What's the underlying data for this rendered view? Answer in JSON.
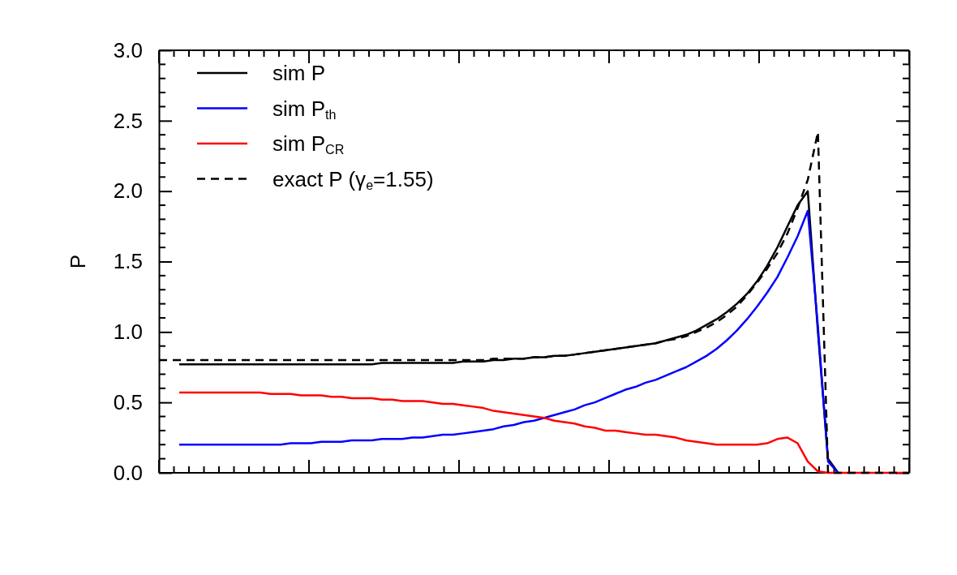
{
  "chart_data": {
    "type": "line",
    "ylabel": "P",
    "categories": [
      null,
      null,
      null,
      null,
      null,
      null,
      null,
      null,
      null,
      null,
      null,
      null,
      null,
      null,
      null,
      null,
      null,
      null,
      null,
      null,
      null,
      null,
      null,
      null,
      null,
      null,
      null,
      null,
      null,
      null,
      null,
      null,
      null,
      null,
      null,
      null,
      null,
      null,
      null,
      null,
      null,
      null,
      null,
      null,
      null,
      null,
      null,
      null,
      null,
      null,
      null,
      null,
      null,
      null,
      null,
      null,
      null,
      null,
      null,
      null,
      null,
      null,
      null,
      null,
      null,
      null,
      null,
      null,
      null,
      null,
      null,
      null,
      null,
      null,
      null
    ],
    "ylim": [
      0,
      3
    ],
    "yticks": [
      {
        "value": 0,
        "label": "0.0"
      },
      {
        "value": 0.5,
        "label": "0.5"
      },
      {
        "value": 1,
        "label": "1.0"
      },
      {
        "value": 1.5,
        "label": "1.5"
      },
      {
        "value": 2,
        "label": "2.0"
      },
      {
        "value": 2.5,
        "label": "2.5"
      },
      {
        "value": 3,
        "label": "3.0"
      }
    ],
    "legend": "top left",
    "marker": "none",
    "series": [
      {
        "name": "sim P",
        "color": "#000000",
        "line_style": "solid",
        "values": [
          null,
          null,
          0.77,
          0.77,
          0.77,
          0.77,
          0.77,
          0.77,
          0.77,
          0.77,
          0.77,
          0.77,
          0.77,
          0.77,
          0.77,
          0.77,
          0.77,
          0.77,
          0.77,
          0.77,
          0.77,
          0.77,
          0.78,
          0.78,
          0.78,
          0.78,
          0.78,
          0.78,
          0.78,
          0.78,
          0.79,
          0.79,
          0.79,
          0.8,
          0.8,
          0.81,
          0.81,
          0.82,
          0.82,
          0.83,
          0.83,
          0.84,
          0.85,
          0.86,
          0.87,
          0.88,
          0.89,
          0.9,
          0.91,
          0.92,
          0.94,
          0.96,
          0.98,
          1.01,
          1.05,
          1.09,
          1.14,
          1.2,
          1.27,
          1.36,
          1.47,
          1.6,
          1.75,
          1.9,
          2.0,
          1.0,
          0.1,
          0,
          null,
          null,
          null,
          null,
          null,
          null,
          null
        ]
      },
      {
        "name": "sim P$_{th}$",
        "color": "#0000ff",
        "line_style": "solid",
        "values": [
          null,
          null,
          0.2,
          0.2,
          0.2,
          0.2,
          0.2,
          0.2,
          0.2,
          0.2,
          0.2,
          0.2,
          0.2,
          0.21,
          0.21,
          0.21,
          0.22,
          0.22,
          0.22,
          0.23,
          0.23,
          0.23,
          0.24,
          0.24,
          0.24,
          0.25,
          0.25,
          0.26,
          0.27,
          0.27,
          0.28,
          0.29,
          0.3,
          0.31,
          0.33,
          0.34,
          0.36,
          0.37,
          0.39,
          0.41,
          0.43,
          0.45,
          0.48,
          0.5,
          0.53,
          0.56,
          0.59,
          0.61,
          0.64,
          0.66,
          0.69,
          0.72,
          0.75,
          0.79,
          0.83,
          0.88,
          0.94,
          1.01,
          1.09,
          1.18,
          1.28,
          1.39,
          1.53,
          1.68,
          1.86,
          1.04,
          0.08,
          0,
          null,
          null,
          null,
          null,
          null,
          null,
          null
        ]
      },
      {
        "name": "sim P$_{CR}$",
        "color": "#ff0000",
        "line_style": "solid",
        "values": [
          null,
          null,
          0.57,
          0.57,
          0.57,
          0.57,
          0.57,
          0.57,
          0.57,
          0.57,
          0.57,
          0.56,
          0.56,
          0.56,
          0.55,
          0.55,
          0.55,
          0.54,
          0.54,
          0.53,
          0.53,
          0.53,
          0.52,
          0.52,
          0.51,
          0.51,
          0.51,
          0.5,
          0.49,
          0.49,
          0.48,
          0.47,
          0.46,
          0.44,
          0.43,
          0.42,
          0.41,
          0.4,
          0.39,
          0.37,
          0.36,
          0.35,
          0.33,
          0.32,
          0.3,
          0.3,
          0.29,
          0.28,
          0.27,
          0.27,
          0.26,
          0.25,
          0.23,
          0.22,
          0.21,
          0.2,
          0.2,
          0.2,
          0.2,
          0.2,
          0.21,
          0.24,
          0.25,
          0.21,
          0.08,
          0.01,
          0,
          0,
          0,
          0,
          0,
          0,
          0,
          0,
          0
        ]
      },
      {
        "name": "exact P (γ$_{e}$=1.55)",
        "color": "#000000",
        "line_style": "dashed",
        "values": [
          0.8,
          0.8,
          0.8,
          0.8,
          0.8,
          0.8,
          0.8,
          0.8,
          0.8,
          0.8,
          0.8,
          0.8,
          0.8,
          0.8,
          0.8,
          0.8,
          0.8,
          0.8,
          0.8,
          0.8,
          0.8,
          0.8,
          0.8,
          0.8,
          0.8,
          0.8,
          0.8,
          0.8,
          0.8,
          0.8,
          0.8,
          0.8,
          0.8,
          0.81,
          0.81,
          0.81,
          0.81,
          0.82,
          0.82,
          0.83,
          0.83,
          0.84,
          0.85,
          0.86,
          0.87,
          0.88,
          0.89,
          0.9,
          0.91,
          0.92,
          0.94,
          0.95,
          0.97,
          1.0,
          1.03,
          1.07,
          1.12,
          1.18,
          1.26,
          1.35,
          1.45,
          1.56,
          1.7,
          1.88,
          2.08,
          2.42,
          0,
          0,
          0,
          0,
          0,
          0,
          0,
          0,
          0
        ]
      }
    ],
    "grid": false
  }
}
